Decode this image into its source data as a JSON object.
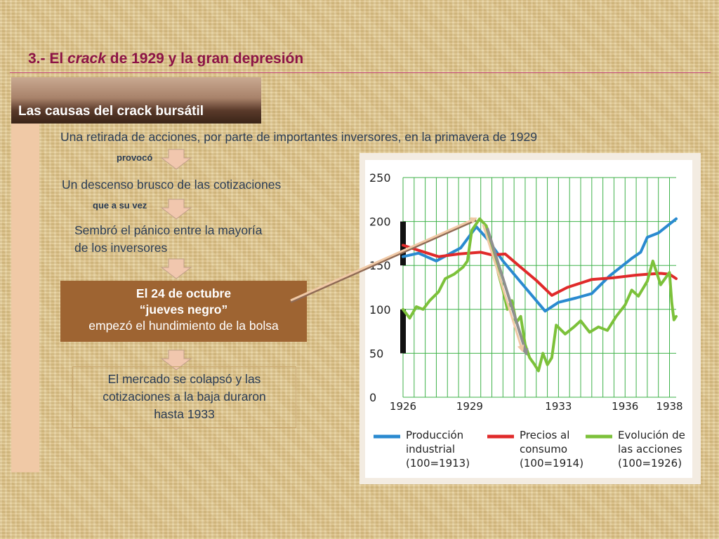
{
  "slide": {
    "title_prefix": "3.- El ",
    "title_em": "crack",
    "title_suffix": " de 1929 y la gran depresión"
  },
  "section": {
    "label": "Las causas del crack bursátil"
  },
  "flow": {
    "step1": "Una retirada de acciones, por parte de importantes inversores, en la primavera de 1929",
    "conn1": "provocó",
    "step2": "Un descenso brusco de las cotizaciones",
    "conn2": "que a su vez",
    "step3_line1": "Sembró el pánico entre la mayoría",
    "step3_line2": "de los inversores",
    "event_line1": "El 24 de octubre",
    "event_line2": "“jueves negro”",
    "event_line3": "empezó el hundimiento de la bolsa",
    "result_line1": "El mercado se colapsó y las",
    "result_line2": "cotizaciones a la baja duraron",
    "result_line3": "hasta 1933"
  },
  "colors": {
    "title": "#8c1346",
    "text": "#2b3d55",
    "event_box": "#9e6432",
    "production": "#2a8ad0",
    "prices": "#e02a2a",
    "stocks": "#7cc13a",
    "grid": "#3fb24a"
  },
  "chart_data": {
    "type": "line",
    "xlim": [
      1926,
      1938.3
    ],
    "ylim": [
      0,
      250
    ],
    "y_ticks": [
      "0",
      "50",
      "100",
      "150",
      "200",
      "250"
    ],
    "x_ticks": [
      {
        "v": 1926,
        "label": "1926"
      },
      {
        "v": 1929,
        "label": "1929"
      },
      {
        "v": 1933,
        "label": "1933"
      },
      {
        "v": 1936,
        "label": "1936"
      },
      {
        "v": 1938,
        "label": "1938"
      }
    ],
    "grid": true,
    "series": [
      {
        "key": "production",
        "legend": [
          "Producción",
          "industrial",
          "(100=1913)"
        ],
        "color": "#2a8ad0",
        "points": [
          [
            1926,
            160
          ],
          [
            1926.7,
            164
          ],
          [
            1927.5,
            155
          ],
          [
            1928,
            162
          ],
          [
            1928.6,
            170
          ],
          [
            1929.3,
            194
          ],
          [
            1929.8,
            180
          ],
          [
            1930.5,
            155
          ],
          [
            1931.5,
            125
          ],
          [
            1932.4,
            98
          ],
          [
            1933,
            108
          ],
          [
            1933.8,
            113
          ],
          [
            1934.5,
            118
          ],
          [
            1935.3,
            138
          ],
          [
            1936.3,
            158
          ],
          [
            1936.7,
            165
          ],
          [
            1937,
            182
          ],
          [
            1937.5,
            187
          ],
          [
            1938.3,
            203
          ]
        ]
      },
      {
        "key": "prices",
        "legend": [
          "Precios al",
          "consumo",
          "(100=1914)"
        ],
        "color": "#e02a2a",
        "points": [
          [
            1926,
            173
          ],
          [
            1926.6,
            168
          ],
          [
            1927.6,
            160
          ],
          [
            1928.5,
            163
          ],
          [
            1929.5,
            165
          ],
          [
            1930,
            162
          ],
          [
            1930.6,
            163
          ],
          [
            1931.2,
            150
          ],
          [
            1932,
            133
          ],
          [
            1932.7,
            116
          ],
          [
            1933.4,
            125
          ],
          [
            1934.5,
            134
          ],
          [
            1935.5,
            136
          ],
          [
            1936.5,
            139
          ],
          [
            1937,
            140
          ],
          [
            1937.6,
            141
          ],
          [
            1938,
            140
          ],
          [
            1938.3,
            135
          ]
        ]
      },
      {
        "key": "stocks",
        "legend": [
          "Evolución de",
          "las acciones",
          "(100=1926)"
        ],
        "color": "#7cc13a",
        "points": [
          [
            1926,
            100
          ],
          [
            1926.3,
            90
          ],
          [
            1926.6,
            103
          ],
          [
            1926.9,
            100
          ],
          [
            1927.2,
            110
          ],
          [
            1927.6,
            120
          ],
          [
            1927.9,
            135
          ],
          [
            1928.3,
            140
          ],
          [
            1928.7,
            148
          ],
          [
            1928.9,
            155
          ],
          [
            1929.1,
            190
          ],
          [
            1929.45,
            203
          ],
          [
            1929.75,
            195
          ],
          [
            1929.9,
            180
          ],
          [
            1930.1,
            165
          ],
          [
            1930.3,
            140
          ],
          [
            1930.5,
            122
          ],
          [
            1930.7,
            100
          ],
          [
            1930.9,
            110
          ],
          [
            1931.1,
            85
          ],
          [
            1931.3,
            92
          ],
          [
            1931.5,
            60
          ],
          [
            1931.7,
            45
          ],
          [
            1931.9,
            38
          ],
          [
            1932.1,
            30
          ],
          [
            1932.3,
            50
          ],
          [
            1932.5,
            37
          ],
          [
            1932.7,
            45
          ],
          [
            1932.9,
            82
          ],
          [
            1933.3,
            72
          ],
          [
            1933.7,
            80
          ],
          [
            1934,
            87
          ],
          [
            1934.4,
            74
          ],
          [
            1934.8,
            80
          ],
          [
            1935.2,
            76
          ],
          [
            1935.6,
            92
          ],
          [
            1936,
            105
          ],
          [
            1936.3,
            122
          ],
          [
            1936.6,
            115
          ],
          [
            1937,
            132
          ],
          [
            1937.25,
            155
          ],
          [
            1937.6,
            128
          ],
          [
            1938,
            142
          ],
          [
            1938.1,
            108
          ],
          [
            1938.2,
            88
          ],
          [
            1938.3,
            92
          ]
        ]
      }
    ],
    "black_bars": [
      [
        150,
        200
      ],
      [
        50,
        100
      ]
    ]
  }
}
